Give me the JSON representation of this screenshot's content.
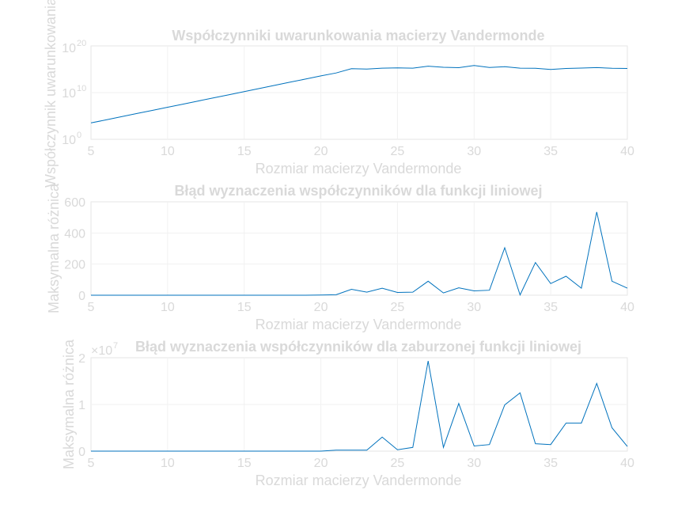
{
  "chart_data": [
    {
      "type": "line",
      "title": "Współczynniki uwarunkowania macierzy Vandermonde",
      "xlabel": "Rozmiar macierzy Vandermonde",
      "ylabel": "Współczynnik uwarunkowania",
      "yscale": "log",
      "xlim": [
        5,
        40
      ],
      "ylim": [
        1,
        1e+20
      ],
      "xticks": [
        "5",
        "10",
        "15",
        "20",
        "25",
        "30",
        "35",
        "40"
      ],
      "yticks": [
        {
          "base": "10",
          "exp": "0"
        },
        {
          "base": "10",
          "exp": "10"
        },
        {
          "base": "10",
          "exp": "20"
        }
      ],
      "grid": true,
      "x": [
        5,
        6,
        7,
        8,
        9,
        10,
        11,
        12,
        13,
        14,
        15,
        16,
        17,
        18,
        19,
        20,
        21,
        22,
        23,
        24,
        25,
        26,
        27,
        28,
        29,
        30,
        31,
        32,
        33,
        34,
        35,
        36,
        37,
        38,
        39,
        40
      ],
      "y": [
        3200.0,
        15000.0,
        70000.0,
        330000.0,
        1550000.0,
        7200000.0,
        34000000.0,
        160000000.0,
        750000000.0,
        3500000000.0,
        16500000000.0,
        77000000000.0,
        360000000000.0,
        1700000000000.0,
        8000000000000.0,
        38000000000000.0,
        160000000000000.0,
        1300000000000000.0,
        1100000000000000.0,
        1700000000000000.0,
        2000000000000000.0,
        1700000000000000.0,
        4500000000000000.0,
        2700000000000000.0,
        2200000000000000.0,
        6500000000000000.0,
        2500000000000000.0,
        3500000000000000.0,
        1700000000000000.0,
        1600000000000000.0,
        900000000000000.0,
        1500000000000000.0,
        1800000000000000.0,
        2300000000000000.0,
        1600000000000000.0,
        1500000000000000.0
      ]
    },
    {
      "type": "line",
      "title": "Błąd wyznaczenia współczynników dla funkcji liniowej",
      "xlabel": "Rozmiar macierzy Vandermonde",
      "ylabel": "Maksymalna różnica",
      "xlim": [
        5,
        40
      ],
      "ylim": [
        0,
        600
      ],
      "xticks": [
        "5",
        "10",
        "15",
        "20",
        "25",
        "30",
        "35",
        "40"
      ],
      "yticks": [
        "0",
        "200",
        "400",
        "600"
      ],
      "grid": true,
      "x": [
        5,
        6,
        7,
        8,
        9,
        10,
        11,
        12,
        13,
        14,
        15,
        16,
        17,
        18,
        19,
        20,
        21,
        22,
        23,
        24,
        25,
        26,
        27,
        28,
        29,
        30,
        31,
        32,
        33,
        34,
        35,
        36,
        37,
        38,
        39,
        40
      ],
      "y": [
        0,
        0,
        0,
        0,
        0,
        0,
        0,
        0,
        0,
        0,
        0,
        0,
        0,
        0,
        0,
        1,
        3,
        38,
        20,
        45,
        18,
        20,
        90,
        15,
        48,
        28,
        32,
        305,
        2,
        210,
        75,
        122,
        45,
        535,
        90,
        45
      ]
    },
    {
      "type": "line",
      "title": "Błąd wyznaczenia współczynników dla zaburzonej funkcji liniowej",
      "xlabel": "Rozmiar macierzy Vandermonde",
      "ylabel": "Maksymalna różnica",
      "xlim": [
        5,
        40
      ],
      "ylim": [
        0,
        2
      ],
      "exponent_label": {
        "prefix": "×10",
        "exp": "7"
      },
      "xticks": [
        "5",
        "10",
        "15",
        "20",
        "25",
        "30",
        "35",
        "40"
      ],
      "yticks": [
        "0",
        "1",
        "2"
      ],
      "grid": true,
      "x": [
        5,
        6,
        7,
        8,
        9,
        10,
        11,
        12,
        13,
        14,
        15,
        16,
        17,
        18,
        19,
        20,
        21,
        22,
        23,
        24,
        25,
        26,
        27,
        28,
        29,
        30,
        31,
        32,
        33,
        34,
        35,
        36,
        37,
        38,
        39,
        40
      ],
      "y": [
        0,
        0,
        0,
        0,
        0,
        0,
        0,
        0,
        0,
        0,
        0,
        0,
        0,
        0,
        0,
        0,
        0.02,
        0.02,
        0.02,
        0.3,
        0.03,
        0.08,
        1.93,
        0.08,
        1.02,
        0.11,
        0.14,
        0.99,
        1.25,
        0.16,
        0.14,
        0.6,
        0.6,
        1.45,
        0.5,
        0.1
      ]
    }
  ]
}
